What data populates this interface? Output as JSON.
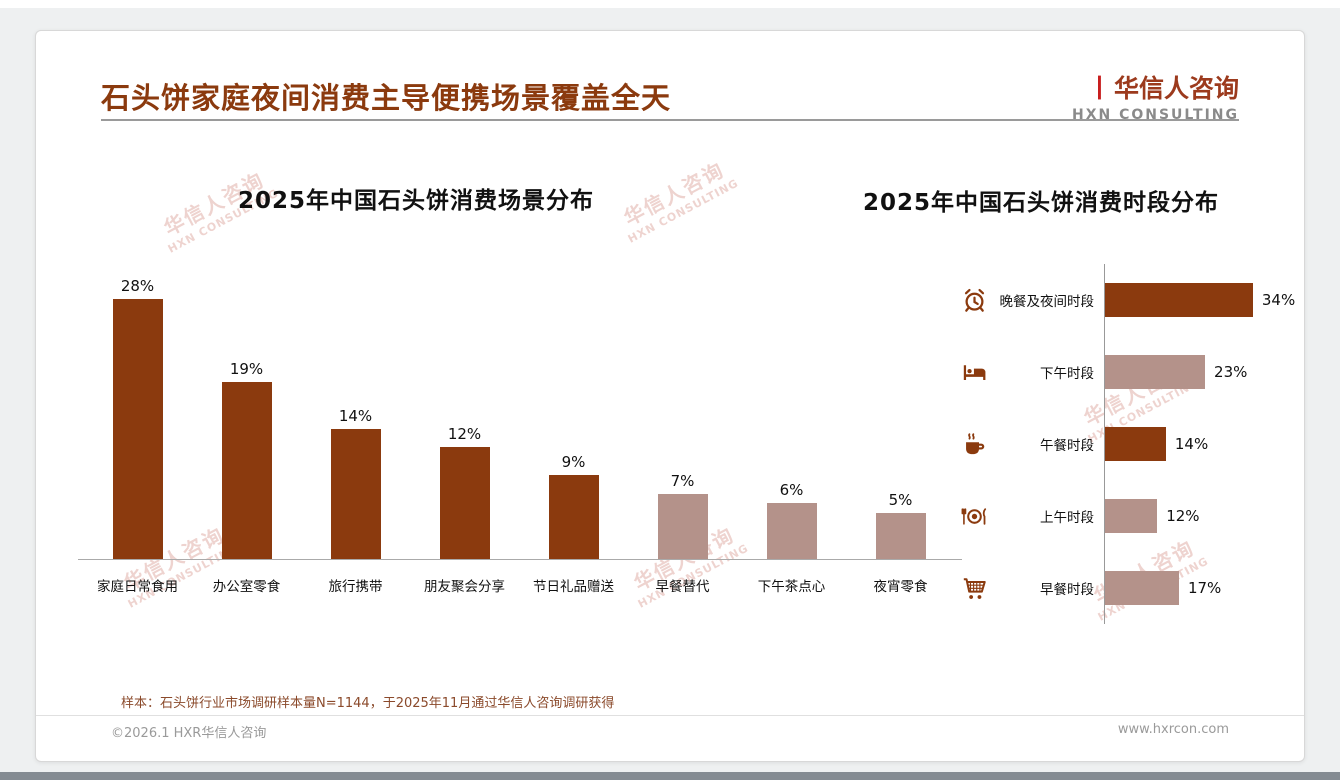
{
  "page": {
    "title": "石头饼家庭夜间消费主导便携场景覆盖全天",
    "logo": {
      "cn": "华信人咨询",
      "en": "HXN CONSULTING"
    },
    "note": "样本：石头饼行业市场调研样本量N=1144，于2025年11月通过华信人咨询调研获得",
    "footer_left": "©2026.1 HXR华信人咨询",
    "footer_right": "www.hxrcon.com",
    "watermark_cn": "华信人咨询",
    "watermark_en": "HXN CONSULTING"
  },
  "colors": {
    "dark": "#8B3A0E",
    "light": "#B4928A"
  },
  "chart_data": [
    {
      "type": "bar",
      "title": "2025年中国石头饼消费场景分布",
      "categories": [
        "家庭日常食用",
        "办公室零食",
        "旅行携带",
        "朋友聚会分享",
        "节日礼品赠送",
        "早餐替代",
        "下午茶点心",
        "夜宵零食"
      ],
      "values": [
        28,
        19,
        14,
        12,
        9,
        7,
        6,
        5
      ],
      "value_labels": [
        "28%",
        "19%",
        "14%",
        "12%",
        "9%",
        "7%",
        "6%",
        "5%"
      ],
      "bar_colors": [
        "dark",
        "dark",
        "dark",
        "dark",
        "dark",
        "light",
        "light",
        "light"
      ],
      "xlabel": "",
      "ylabel": "",
      "ylim": [
        0,
        30
      ],
      "grid": false,
      "legend": false
    },
    {
      "type": "bar",
      "orientation": "horizontal",
      "title": "2025年中国石头饼消费时段分布",
      "categories": [
        "晚餐及夜间时段",
        "下午时段",
        "午餐时段",
        "上午时段",
        "早餐时段"
      ],
      "values": [
        34,
        23,
        14,
        12,
        17
      ],
      "value_labels": [
        "34%",
        "23%",
        "14%",
        "12%",
        "17%"
      ],
      "bar_colors": [
        "dark",
        "light",
        "dark",
        "light",
        "light"
      ],
      "icons": [
        "alarm-clock-icon",
        "bed-icon",
        "coffee-icon",
        "plate-cutlery-icon",
        "cart-icon"
      ],
      "xlabel": "",
      "ylabel": "",
      "xlim": [
        0,
        40
      ],
      "grid": false,
      "legend": false
    }
  ]
}
